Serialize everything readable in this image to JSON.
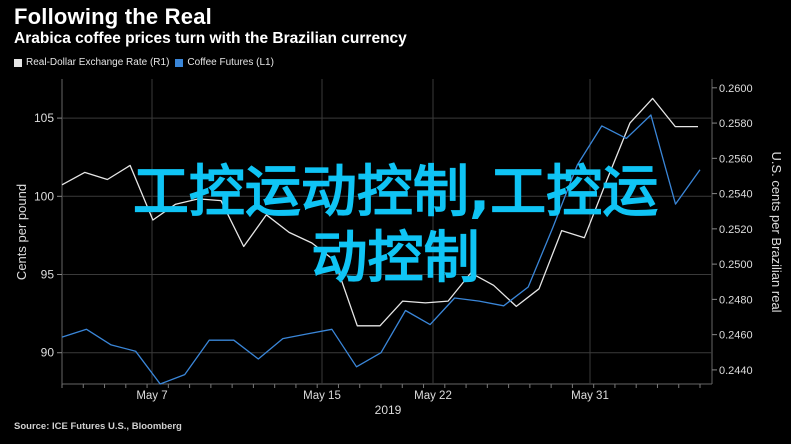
{
  "header": {
    "title": "Following the Real",
    "subtitle": "Arabica coffee prices turn with the Brazilian currency"
  },
  "legend": [
    {
      "name": "Real-Dollar Exchange Rate (R1)",
      "color": "#e6e6e6"
    },
    {
      "name": "Coffee Futures (L1)",
      "color": "#3a86d8"
    }
  ],
  "source": "Source: ICE Futures U.S., Bloomberg",
  "overlay": {
    "line1": "工控运动控制,工控运",
    "line2": "动控制"
  },
  "chart_data": {
    "type": "line",
    "title": "Following the Real",
    "subtitle": "Arabica coffee prices turn with the Brazilian currency",
    "xlabel": "2019",
    "x_ticks": [
      "May 7",
      "May 15",
      "May 22",
      "May 31"
    ],
    "left_axis": {
      "label": "Cents per pound",
      "ticks": [
        90,
        95,
        100,
        105
      ],
      "range": [
        88,
        107.5
      ]
    },
    "right_axis": {
      "label": "U.S. cents per Brazilian real",
      "ticks": [
        "0.2440",
        "0.2460",
        "0.2480",
        "0.2500",
        "0.2520",
        "0.2540",
        "0.2560",
        "0.2580",
        "0.2600"
      ],
      "range": [
        0.2432,
        0.2605
      ]
    },
    "grid": true,
    "legend_position": "top-left",
    "series": [
      {
        "name": "Real-Dollar Exchange Rate (R1)",
        "axis": "right",
        "color": "#e6e6e6",
        "values": [
          0.2545,
          0.2552,
          0.2548,
          0.2556,
          0.2525,
          0.2534,
          0.2537,
          0.2536,
          0.251,
          0.2528,
          0.2518,
          0.2512,
          0.2502,
          0.2465,
          0.2465,
          0.2479,
          0.2478,
          0.2479,
          0.2495,
          0.2488,
          0.2476,
          0.2486,
          0.2519,
          0.2515,
          0.2548,
          0.258,
          0.2594,
          0.2578,
          0.2578
        ]
      },
      {
        "name": "Coffee Futures (L1)",
        "axis": "left",
        "color": "#3a86d8",
        "values": [
          91.0,
          91.5,
          90.5,
          90.1,
          88.0,
          88.6,
          90.8,
          90.8,
          89.6,
          90.9,
          91.2,
          91.5,
          89.1,
          90.0,
          92.7,
          91.8,
          93.5,
          93.3,
          93.0,
          94.2,
          98.0,
          102.0,
          104.5,
          103.7,
          105.2,
          99.5,
          101.7
        ]
      }
    ]
  }
}
